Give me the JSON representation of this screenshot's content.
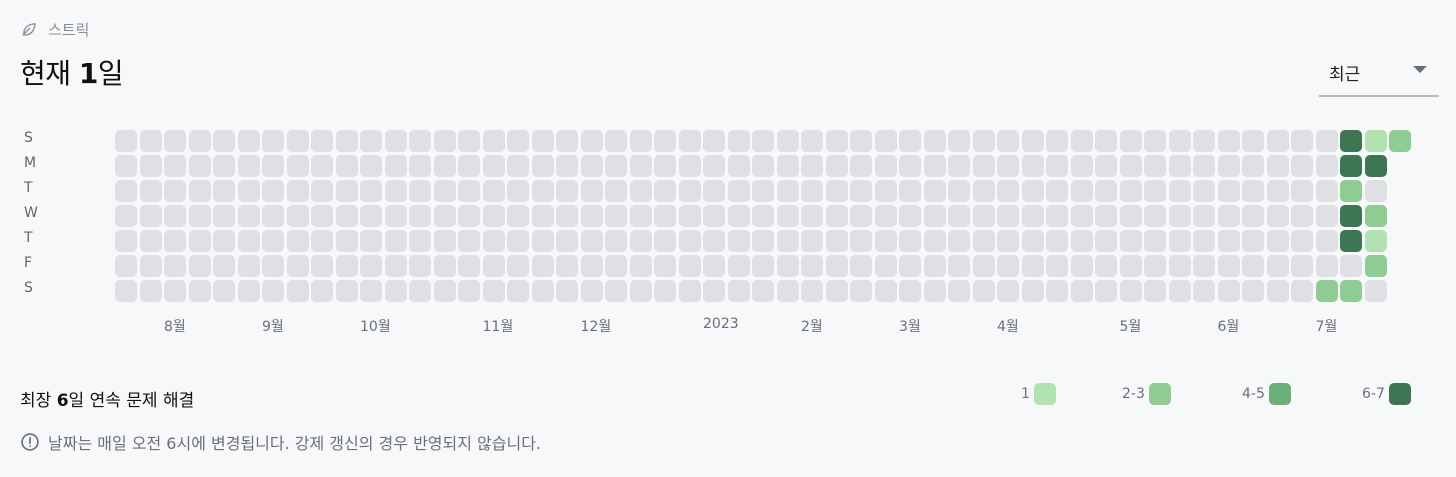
{
  "header": {
    "section_label": "스트릭",
    "headline_prefix": "현재 ",
    "headline_value": "1",
    "headline_suffix": "일"
  },
  "period_select": {
    "value": "최근"
  },
  "weekday_labels": [
    "S",
    "M",
    "T",
    "W",
    "T",
    "F",
    "S"
  ],
  "month_labels": [
    "8월",
    "9월",
    "10월",
    "11월",
    "12월",
    "2023",
    "2월",
    "3월",
    "4월",
    "5월",
    "6월",
    "7월"
  ],
  "streak_grid": {
    "weeks": 53,
    "levels": [
      "none",
      "1",
      "2-3",
      "4-5",
      "6-7"
    ],
    "active_cells": [
      {
        "week": 49,
        "day": 6,
        "level": 2
      },
      {
        "week": 50,
        "day": 0,
        "level": 4
      },
      {
        "week": 50,
        "day": 1,
        "level": 4
      },
      {
        "week": 50,
        "day": 2,
        "level": 2
      },
      {
        "week": 50,
        "day": 3,
        "level": 4
      },
      {
        "week": 50,
        "day": 4,
        "level": 4
      },
      {
        "week": 50,
        "day": 6,
        "level": 2
      },
      {
        "week": 51,
        "day": 0,
        "level": 1
      },
      {
        "week": 51,
        "day": 1,
        "level": 4
      },
      {
        "week": 51,
        "day": 3,
        "level": 2
      },
      {
        "week": 51,
        "day": 4,
        "level": 1
      },
      {
        "week": 51,
        "day": 5,
        "level": 2
      },
      {
        "week": 52,
        "day": 0,
        "level": 2
      }
    ],
    "last_week_days": 1
  },
  "summary": {
    "prefix": "최장 ",
    "value": "6",
    "suffix": "일 연속 문제 해결"
  },
  "legend": [
    {
      "label": "1",
      "color": "#b2e2b0"
    },
    {
      "label": "2-3",
      "color": "#8fcc94"
    },
    {
      "label": "4-5",
      "color": "#6daf7b"
    },
    {
      "label": "6-7",
      "color": "#3e7552"
    }
  ],
  "colors": {
    "empty": "#dfe0e3",
    "level_1": "#b2e2b0",
    "level_2": "#8fcc94",
    "level_3": "#6daf7b",
    "level_4": "#3e7552"
  },
  "notice": "날짜는 매일 오전 6시에 변경됩니다. 강제 갱신의 경우 반영되지 않습니다."
}
